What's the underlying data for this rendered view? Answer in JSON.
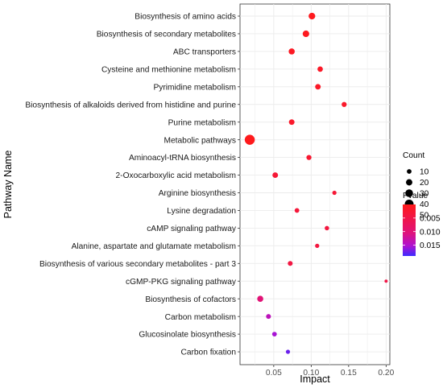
{
  "chart_data": {
    "type": "scatter",
    "xlabel": "Impact",
    "ylabel": "Pathway Name",
    "xlim": [
      0.005,
      0.205
    ],
    "xticks": [
      0.05,
      0.1,
      0.15,
      0.2
    ],
    "xtick_labels": [
      "0.05",
      "0.10",
      "0.15",
      "0.20"
    ],
    "grid": true,
    "legend_position": "right",
    "size_legend": {
      "title": "Count",
      "values": [
        10,
        20,
        30,
        40,
        50
      ],
      "labels": [
        "10",
        "20",
        "30",
        "40",
        "50"
      ]
    },
    "color_legend": {
      "title": "Pvalue",
      "range": [
        0.0,
        0.019
      ],
      "ticks": [
        0.005,
        0.01,
        0.015
      ],
      "tick_labels": [
        "0.005",
        "0.010",
        "0.015"
      ],
      "low_color": "#ff1a1a",
      "high_color": "#3d2bff"
    },
    "categories": [
      "Biosynthesis of amino acids",
      "Biosynthesis of secondary metabolites",
      "ABC transporters",
      "Cysteine and methionine metabolism",
      "Pyrimidine metabolism",
      "Biosynthesis of alkaloids derived from histidine and purine",
      "Purine metabolism",
      "Metabolic pathways",
      "Aminoacyl-tRNA biosynthesis",
      "2-Oxocarboxylic acid metabolism",
      "Arginine biosynthesis",
      "Lysine degradation",
      "cAMP signaling pathway",
      "Alanine, aspartate and glutamate metabolism",
      "Biosynthesis of various secondary metabolites - part 3",
      "cGMP-PKG signaling pathway",
      "Biosynthesis of cofactors",
      "Carbon metabolism",
      "Glucosinolate biosynthesis",
      "Carbon fixation"
    ],
    "points": [
      {
        "x": 0.101,
        "count": 22,
        "pvalue": 0.0005
      },
      {
        "x": 0.093,
        "count": 21,
        "pvalue": 0.0007
      },
      {
        "x": 0.074,
        "count": 18,
        "pvalue": 0.001
      },
      {
        "x": 0.112,
        "count": 14,
        "pvalue": 0.0015
      },
      {
        "x": 0.109,
        "count": 15,
        "pvalue": 0.0015
      },
      {
        "x": 0.144,
        "count": 12,
        "pvalue": 0.0018
      },
      {
        "x": 0.074,
        "count": 15,
        "pvalue": 0.0018
      },
      {
        "x": 0.018,
        "count": 52,
        "pvalue": 0.0002
      },
      {
        "x": 0.097,
        "count": 12,
        "pvalue": 0.0025
      },
      {
        "x": 0.052,
        "count": 15,
        "pvalue": 0.003
      },
      {
        "x": 0.131,
        "count": 8,
        "pvalue": 0.003
      },
      {
        "x": 0.081,
        "count": 10,
        "pvalue": 0.0035
      },
      {
        "x": 0.121,
        "count": 9,
        "pvalue": 0.004
      },
      {
        "x": 0.108,
        "count": 8,
        "pvalue": 0.004
      },
      {
        "x": 0.072,
        "count": 11,
        "pvalue": 0.0045
      },
      {
        "x": 0.2,
        "count": 4,
        "pvalue": 0.005
      },
      {
        "x": 0.032,
        "count": 18,
        "pvalue": 0.01
      },
      {
        "x": 0.043,
        "count": 11,
        "pvalue": 0.014
      },
      {
        "x": 0.051,
        "count": 10,
        "pvalue": 0.0155
      },
      {
        "x": 0.069,
        "count": 8,
        "pvalue": 0.0175
      }
    ]
  }
}
